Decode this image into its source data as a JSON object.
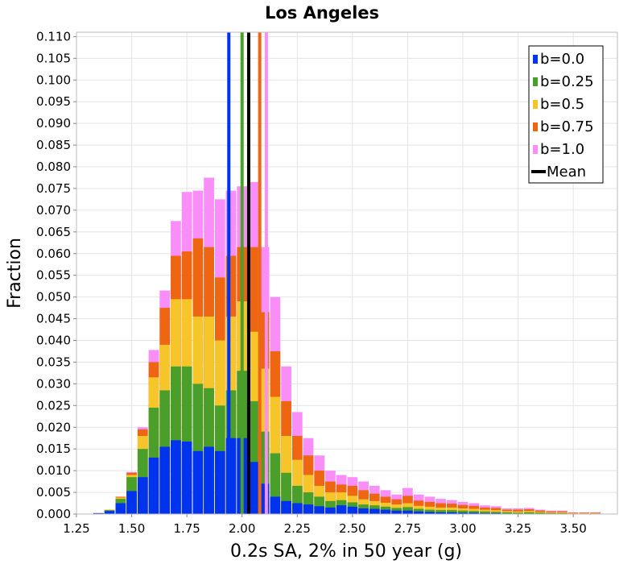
{
  "chart_data": {
    "type": "bar",
    "title": "Los Angeles",
    "xlabel": "0.2s SA, 2% in 50 year (g)",
    "ylabel": "Fraction",
    "xlim": [
      1.25,
      3.7
    ],
    "ylim": [
      0,
      0.111
    ],
    "x_ticks": [
      "1.25",
      "1.50",
      "1.75",
      "2.00",
      "2.25",
      "2.50",
      "2.75",
      "3.00",
      "3.25",
      "3.50"
    ],
    "y_ticks": [
      "0.000",
      "0.005",
      "0.010",
      "0.015",
      "0.020",
      "0.025",
      "0.030",
      "0.035",
      "0.040",
      "0.045",
      "0.050",
      "0.055",
      "0.060",
      "0.065",
      "0.070",
      "0.075",
      "0.080",
      "0.085",
      "0.090",
      "0.095",
      "0.100",
      "0.105",
      "0.110"
    ],
    "grid": true,
    "legend_position": "top-right",
    "bin_width": 0.05,
    "x": [
      1.35,
      1.4,
      1.45,
      1.5,
      1.55,
      1.6,
      1.65,
      1.7,
      1.75,
      1.8,
      1.85,
      1.9,
      1.95,
      2.0,
      2.05,
      2.1,
      2.15,
      2.2,
      2.25,
      2.3,
      2.35,
      2.4,
      2.45,
      2.5,
      2.55,
      2.6,
      2.65,
      2.7,
      2.75,
      2.8,
      2.85,
      2.9,
      2.95,
      3.0,
      3.05,
      3.1,
      3.15,
      3.2,
      3.25,
      3.3,
      3.35,
      3.4,
      3.45,
      3.5,
      3.55,
      3.6
    ],
    "series": [
      {
        "name": "b=0.0",
        "color": "#0033ee",
        "values": [
          0.0002,
          0.0007,
          0.0025,
          0.0053,
          0.0085,
          0.013,
          0.0155,
          0.017,
          0.0167,
          0.0145,
          0.0155,
          0.0145,
          0.0175,
          0.0175,
          0.012,
          0.007,
          0.004,
          0.003,
          0.0025,
          0.0022,
          0.0018,
          0.0015,
          0.002,
          0.0017,
          0.0013,
          0.0012,
          0.001,
          0.0008,
          0.0008,
          0.0006,
          0.0005,
          0.0004,
          0.0004,
          0.0003,
          0.0003,
          0.0002,
          0.0002,
          0.0001,
          0.0001,
          0.0001,
          0.0001,
          0.0001,
          0.0,
          0.0,
          0.0,
          0.0001
        ]
      },
      {
        "name": "b=0.25",
        "color": "#4a9e2a",
        "values": [
          0.0002,
          0.0009,
          0.0035,
          0.0085,
          0.015,
          0.0245,
          0.0285,
          0.034,
          0.034,
          0.03,
          0.029,
          0.025,
          0.0285,
          0.033,
          0.026,
          0.019,
          0.014,
          0.0095,
          0.0065,
          0.005,
          0.004,
          0.003,
          0.0032,
          0.0027,
          0.0022,
          0.002,
          0.0017,
          0.0014,
          0.0016,
          0.0012,
          0.001,
          0.0009,
          0.0009,
          0.0008,
          0.0007,
          0.0006,
          0.0005,
          0.0004,
          0.0003,
          0.0004,
          0.0003,
          0.0002,
          0.0002,
          0.0001,
          0.0001,
          0.0001
        ]
      },
      {
        "name": "b=0.5",
        "color": "#f5c52a",
        "values": [
          0.0002,
          0.001,
          0.0038,
          0.009,
          0.018,
          0.0315,
          0.039,
          0.0495,
          0.0495,
          0.0455,
          0.0455,
          0.04,
          0.0455,
          0.049,
          0.042,
          0.0335,
          0.027,
          0.018,
          0.0125,
          0.009,
          0.0065,
          0.005,
          0.005,
          0.0042,
          0.0034,
          0.003,
          0.0026,
          0.0022,
          0.0025,
          0.0019,
          0.0017,
          0.0015,
          0.0015,
          0.0013,
          0.0012,
          0.001,
          0.0009,
          0.0007,
          0.0006,
          0.0007,
          0.0005,
          0.0004,
          0.0004,
          0.0002,
          0.0002,
          0.0002
        ]
      },
      {
        "name": "b=0.75",
        "color": "#ee6611",
        "values": [
          0.0002,
          0.001,
          0.004,
          0.0095,
          0.0195,
          0.035,
          0.0475,
          0.0595,
          0.0605,
          0.0635,
          0.0615,
          0.0545,
          0.0595,
          0.0615,
          0.0615,
          0.0465,
          0.0375,
          0.026,
          0.018,
          0.0135,
          0.01,
          0.0075,
          0.0068,
          0.0065,
          0.0055,
          0.0047,
          0.004,
          0.0034,
          0.0042,
          0.0031,
          0.0028,
          0.0025,
          0.0024,
          0.0021,
          0.0019,
          0.0015,
          0.0014,
          0.001,
          0.001,
          0.0011,
          0.0008,
          0.0006,
          0.0006,
          0.0003,
          0.0003,
          0.0003
        ]
      },
      {
        "name": "b=1.0",
        "color": "#f98ef9",
        "values": [
          0.0002,
          0.001,
          0.004,
          0.0097,
          0.02,
          0.0378,
          0.0515,
          0.0675,
          0.0742,
          0.0745,
          0.0775,
          0.0725,
          0.0745,
          0.0755,
          0.0765,
          0.0615,
          0.05,
          0.034,
          0.0235,
          0.0175,
          0.0135,
          0.01,
          0.009,
          0.0085,
          0.0075,
          0.0065,
          0.0055,
          0.0045,
          0.006,
          0.0045,
          0.004,
          0.0035,
          0.0032,
          0.0028,
          0.0025,
          0.002,
          0.0018,
          0.0013,
          0.0013,
          0.0014,
          0.001,
          0.0008,
          0.0008,
          0.0004,
          0.0004,
          0.0004
        ]
      }
    ],
    "mean_lines": [
      {
        "series": "b=0.0",
        "x": 1.94,
        "color": "#0033ee"
      },
      {
        "series": "b=0.25",
        "x": 2.0,
        "color": "#4a9e2a"
      },
      {
        "series": "b=0.75",
        "x": 2.08,
        "color": "#ee6611"
      },
      {
        "series": "b=1.0",
        "x": 2.11,
        "color": "#f98ef9"
      },
      {
        "series": "Mean",
        "x": 2.03,
        "color": "#000000"
      }
    ],
    "legend": [
      {
        "label": "b=0.0",
        "color": "#0033ee",
        "kind": "box"
      },
      {
        "label": "b=0.25",
        "color": "#4a9e2a",
        "kind": "box"
      },
      {
        "label": "b=0.5",
        "color": "#f5c52a",
        "kind": "box"
      },
      {
        "label": "b=0.75",
        "color": "#ee6611",
        "kind": "box"
      },
      {
        "label": "b=1.0",
        "color": "#f98ef9",
        "kind": "box"
      },
      {
        "label": "Mean",
        "color": "#000000",
        "kind": "line"
      }
    ]
  }
}
